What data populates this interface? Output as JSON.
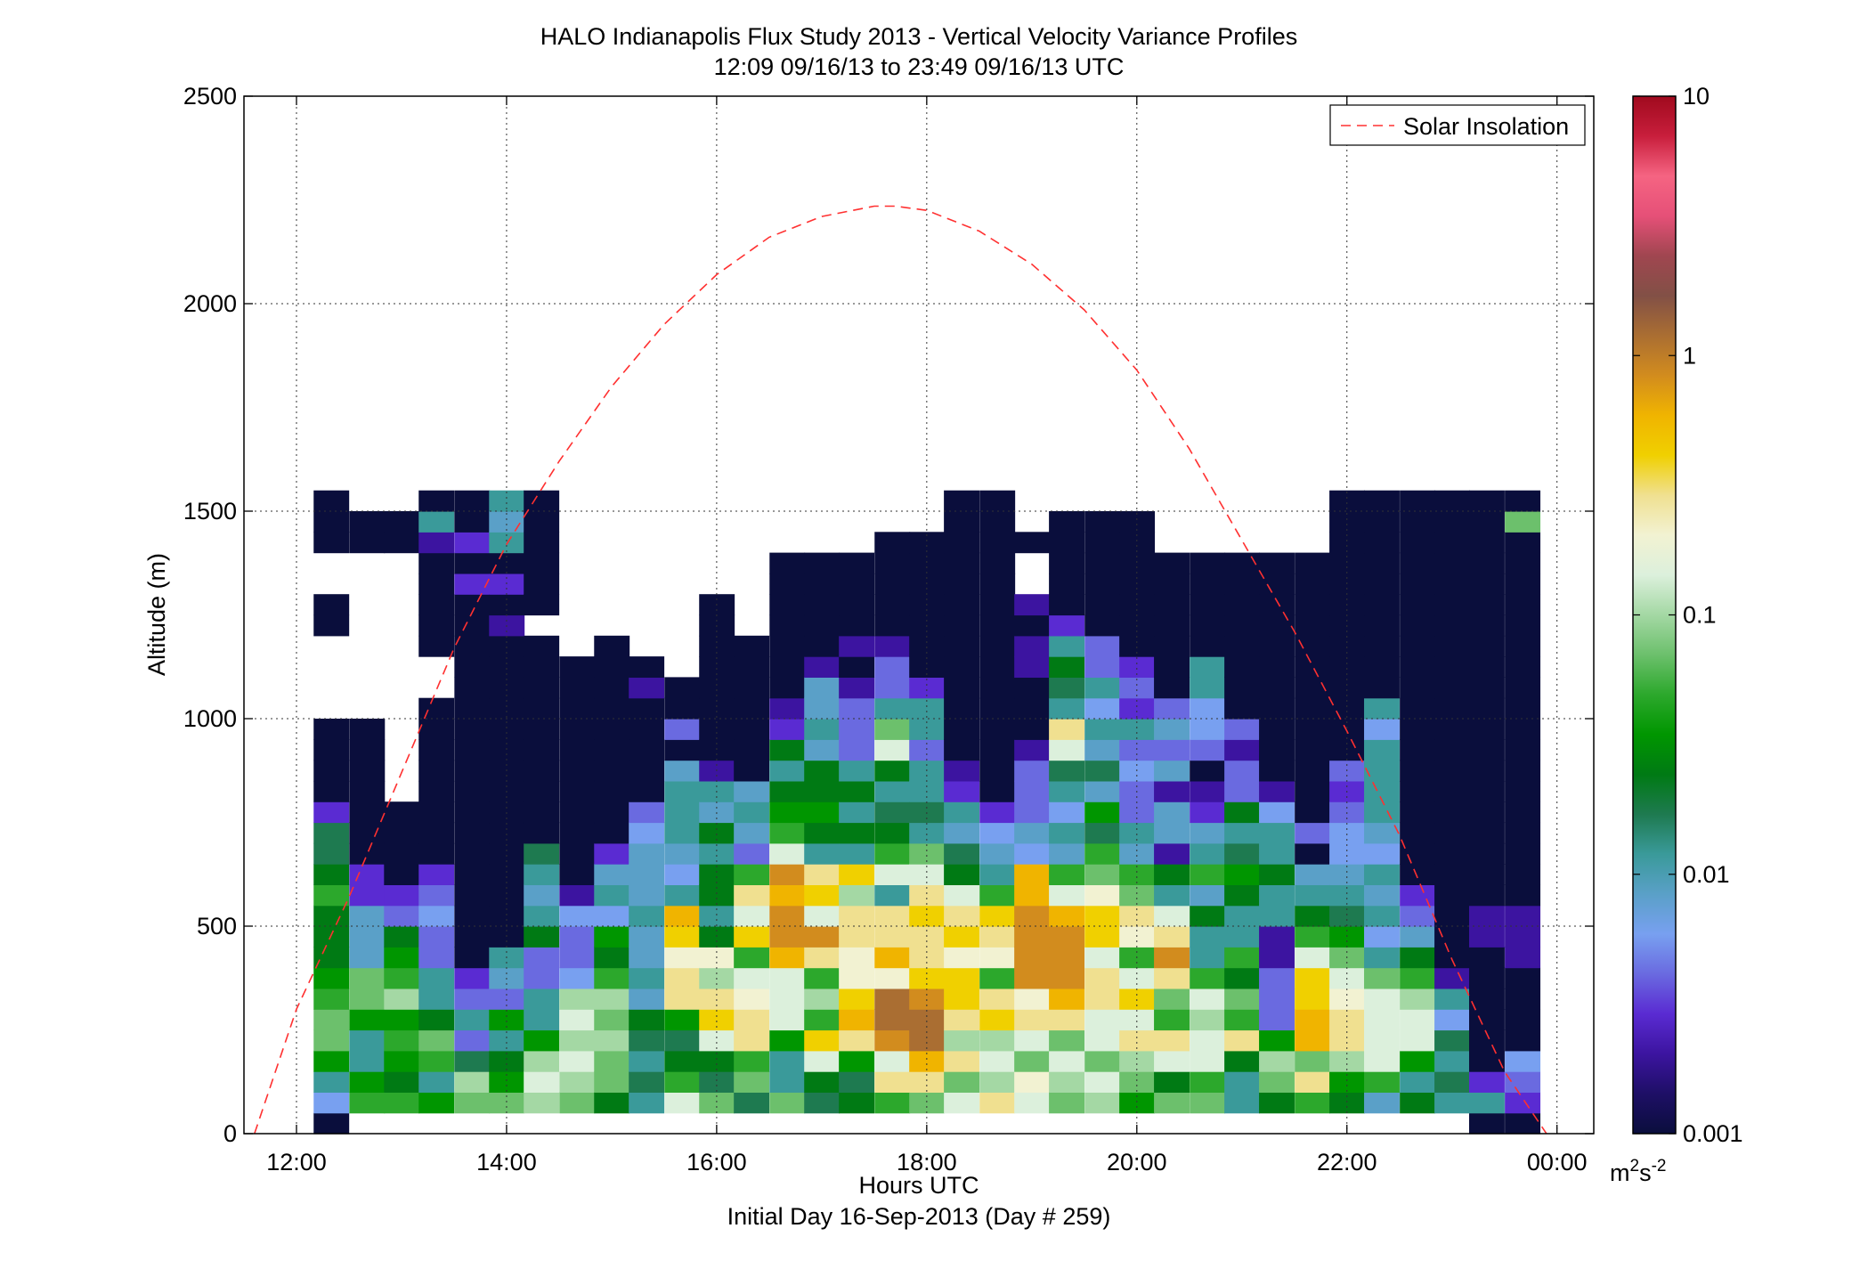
{
  "chart_data": {
    "type": "heatmap",
    "title": "HALO Indianapolis Flux Study 2013 - Vertical Velocity Variance Profiles",
    "subtitle": "12:09 09/16/13 to 23:49 09/16/13  UTC",
    "xlabel": "Hours UTC",
    "xlabel2": "Initial Day 16-Sep-2013 (Day # 259)",
    "ylabel": "Altitude (m)",
    "xlim": [
      11.5,
      24.35
    ],
    "ylim": [
      0,
      2500
    ],
    "x_ticks": [
      12,
      14,
      16,
      18,
      20,
      22,
      24
    ],
    "x_tick_labels": [
      "12:00",
      "14:00",
      "16:00",
      "18:00",
      "20:00",
      "22:00",
      "00:00"
    ],
    "y_ticks": [
      0,
      500,
      1000,
      1500,
      2000,
      2500
    ],
    "y_tick_labels": [
      "0",
      "500",
      "1000",
      "1500",
      "2000",
      "2500"
    ],
    "grid": true,
    "colorbar": {
      "scale": "log",
      "range": [
        0.001,
        10
      ],
      "ticks": [
        0.001,
        0.01,
        0.1,
        1,
        10
      ],
      "tick_labels": [
        "0.001",
        "0.01",
        "0.1",
        "1",
        "10"
      ],
      "unit_base": "m",
      "unit_exp1": "2",
      "unit_mid": "s",
      "unit_exp2": "-2",
      "colormap": [
        "#0a0e3c",
        "#1e0f66",
        "#3c14a0",
        "#5a2bd2",
        "#6a6ae0",
        "#78a0f0",
        "#5aa0c8",
        "#3a9a9a",
        "#1e7a50",
        "#007a14",
        "#009600",
        "#2ca82c",
        "#6cc06c",
        "#a4d8a4",
        "#dcf0dc",
        "#f2f2d2",
        "#f0e090",
        "#f0d000",
        "#f0b400",
        "#d28c1e",
        "#aa6e32",
        "#825046",
        "#a04650",
        "#e65078",
        "#f56482",
        "#c81e3c",
        "#a00a1e"
      ]
    },
    "legend": {
      "placement": "top-right",
      "entries": [
        {
          "name": "Solar Insolation",
          "style": "dashed",
          "color": "#ff3030"
        }
      ]
    },
    "solar_insolation": {
      "x": [
        11.6,
        12.0,
        12.5,
        13.0,
        13.5,
        14.0,
        14.5,
        15.0,
        15.5,
        16.0,
        16.5,
        17.0,
        17.5,
        17.7,
        18.0,
        18.5,
        19.0,
        19.5,
        20.0,
        20.5,
        21.0,
        21.5,
        22.0,
        22.5,
        23.0,
        23.5,
        23.9
      ],
      "y": [
        0,
        300,
        570,
        870,
        1170,
        1420,
        1620,
        1800,
        1950,
        2070,
        2160,
        2210,
        2235,
        2235,
        2225,
        2175,
        2095,
        1985,
        1840,
        1650,
        1430,
        1210,
        970,
        720,
        420,
        150,
        0
      ]
    },
    "time_bin_width_h": 0.3333,
    "altitude_bin_m": 50,
    "altitude_bins_bottom_m": [
      0,
      50,
      100,
      150,
      200,
      250,
      300,
      350,
      400,
      450,
      500,
      550,
      600,
      650,
      700,
      750,
      800,
      850,
      900,
      950,
      1000,
      1050,
      1100,
      1150,
      1200,
      1250,
      1300,
      1350,
      1400,
      1450,
      1500
    ],
    "times_h": [
      12.33,
      12.67,
      13.0,
      13.33,
      13.67,
      14.0,
      14.33,
      14.67,
      15.0,
      15.33,
      15.67,
      16.0,
      16.33,
      16.67,
      17.0,
      17.33,
      17.67,
      18.0,
      18.33,
      18.67,
      19.0,
      19.33,
      19.67,
      20.0,
      20.33,
      20.67,
      21.0,
      21.33,
      21.67,
      22.0,
      22.33,
      22.67,
      23.0,
      23.33,
      23.67
    ],
    "variance_m2s2": [
      [
        0.001,
        0.007,
        0.015,
        0.04,
        0.08,
        0.06,
        0.05,
        0.04,
        0.025,
        0.03,
        0.03,
        0.05,
        0.025,
        0.02,
        0.02,
        0.003,
        0.001,
        0.001,
        0.001,
        0.001,
        null,
        null,
        null,
        null,
        0.001,
        0.001,
        null,
        null,
        0.001,
        0.001,
        0.001
      ],
      [
        null,
        0.05,
        0.04,
        0.015,
        0.012,
        0.04,
        0.06,
        0.06,
        0.008,
        0.008,
        0.008,
        0.003,
        0.003,
        0.001,
        0.001,
        0.001,
        0.001,
        0.001,
        0.001,
        0.001,
        null,
        null,
        null,
        null,
        null,
        null,
        null,
        null,
        0.001,
        0.001,
        null
      ],
      [
        null,
        0.05,
        0.03,
        0.035,
        0.05,
        0.04,
        0.1,
        0.05,
        0.04,
        0.03,
        0.004,
        0.003,
        0.001,
        0.001,
        0.001,
        0.001,
        null,
        null,
        null,
        null,
        null,
        null,
        null,
        null,
        null,
        null,
        null,
        null,
        0.001,
        0.001,
        null
      ],
      [
        null,
        0.04,
        0.015,
        0.05,
        0.08,
        0.03,
        0.012,
        0.015,
        0.005,
        0.005,
        0.007,
        0.004,
        0.003,
        0.001,
        0.001,
        0.001,
        0.001,
        0.001,
        0.001,
        0.001,
        0.001,
        null,
        null,
        0.001,
        0.001,
        0.001,
        0.001,
        0.001,
        0.002,
        0.015,
        0.001
      ],
      [
        null,
        0.07,
        0.1,
        0.02,
        0.005,
        0.012,
        0.005,
        0.003,
        0.001,
        0.001,
        0.001,
        0.001,
        0.001,
        0.001,
        0.001,
        0.001,
        0.001,
        0.001,
        0.001,
        0.001,
        0.001,
        0.001,
        0.001,
        0.001,
        0.001,
        0.001,
        0.003,
        0.001,
        0.003,
        0.001,
        0.001
      ],
      [
        null,
        0.06,
        0.04,
        0.03,
        0.015,
        0.04,
        0.005,
        0.008,
        0.012,
        0.001,
        0.001,
        0.001,
        0.001,
        0.001,
        0.001,
        0.001,
        0.001,
        0.001,
        0.001,
        0.001,
        0.001,
        0.001,
        0.001,
        0.001,
        0.002,
        0.001,
        0.003,
        0.001,
        0.012,
        0.01,
        0.015
      ],
      [
        null,
        0.1,
        0.12,
        0.1,
        0.04,
        0.015,
        0.012,
        0.004,
        0.005,
        0.03,
        0.015,
        0.01,
        0.012,
        0.02,
        0.001,
        0.001,
        0.001,
        0.001,
        0.001,
        0.001,
        0.001,
        0.001,
        0.001,
        0.001,
        null,
        0.001,
        0.001,
        0.001,
        0.001,
        0.001,
        0.001
      ],
      [
        null,
        0.08,
        0.1,
        0.12,
        0.1,
        0.15,
        0.1,
        0.007,
        0.005,
        0.004,
        0.006,
        0.002,
        0.001,
        0.001,
        0.001,
        0.001,
        0.001,
        0.001,
        0.001,
        0.001,
        0.001,
        0.001,
        0.001,
        null,
        null,
        null,
        null,
        null,
        null,
        null,
        null
      ],
      [
        null,
        0.03,
        0.06,
        0.08,
        0.1,
        0.08,
        0.1,
        0.05,
        0.03,
        0.04,
        0.007,
        0.015,
        0.008,
        0.003,
        0.001,
        0.001,
        0.001,
        0.001,
        0.001,
        0.001,
        0.001,
        0.001,
        0.001,
        0.001,
        null,
        null,
        null,
        null,
        null,
        null,
        null
      ],
      [
        null,
        0.015,
        0.02,
        0.015,
        0.02,
        0.025,
        0.01,
        0.015,
        0.01,
        0.01,
        0.012,
        0.01,
        0.01,
        0.01,
        0.006,
        0.005,
        0.001,
        0.001,
        0.001,
        0.001,
        0.001,
        0.002,
        0.001,
        null,
        null,
        null,
        null,
        null,
        null,
        null,
        null
      ],
      [
        null,
        0.12,
        0.05,
        0.03,
        0.02,
        0.04,
        0.25,
        0.3,
        0.2,
        0.4,
        0.6,
        0.012,
        0.007,
        0.01,
        0.015,
        0.012,
        0.015,
        0.01,
        0.001,
        0.005,
        0.001,
        0.001,
        null,
        null,
        null,
        null,
        null,
        null,
        null,
        null,
        null
      ],
      [
        null,
        0.06,
        0.02,
        0.03,
        0.15,
        0.35,
        0.3,
        0.1,
        0.2,
        0.03,
        0.015,
        0.03,
        0.03,
        0.015,
        0.03,
        0.01,
        0.012,
        0.002,
        0.001,
        0.001,
        0.001,
        0.001,
        0.001,
        0.001,
        0.001,
        0.001,
        null,
        null,
        null,
        null,
        null
      ],
      [
        null,
        0.02,
        0.06,
        0.05,
        0.3,
        0.3,
        0.2,
        0.12,
        0.05,
        0.4,
        0.12,
        0.3,
        0.05,
        0.005,
        0.01,
        0.015,
        0.008,
        0.001,
        0.001,
        0.001,
        0.001,
        0.001,
        0.001,
        0.001,
        null,
        null,
        null,
        null,
        null,
        null,
        null
      ],
      [
        null,
        0.06,
        0.015,
        0.012,
        0.04,
        0.12,
        0.15,
        0.15,
        0.5,
        0.7,
        0.8,
        0.6,
        0.7,
        0.15,
        0.05,
        0.04,
        0.025,
        0.015,
        0.03,
        0.003,
        0.002,
        0.001,
        0.001,
        0.001,
        0.001,
        0.001,
        0.001,
        0.001,
        null,
        null,
        null
      ],
      [
        null,
        0.02,
        0.03,
        0.15,
        0.4,
        0.05,
        0.1,
        0.05,
        0.3,
        0.8,
        0.12,
        0.4,
        0.3,
        0.015,
        0.03,
        0.04,
        0.025,
        0.03,
        0.01,
        0.012,
        0.01,
        0.01,
        0.002,
        0.001,
        0.001,
        0.001,
        0.001,
        0.001,
        null,
        null,
        null
      ],
      [
        null,
        0.03,
        0.02,
        0.04,
        0.3,
        0.5,
        0.4,
        0.2,
        0.2,
        0.3,
        0.3,
        0.1,
        0.4,
        0.015,
        0.03,
        0.012,
        0.03,
        0.015,
        0.004,
        0.005,
        0.004,
        0.002,
        0.001,
        0.002,
        0.001,
        0.001,
        0.001,
        0.001,
        null,
        null,
        null
      ],
      [
        null,
        0.05,
        0.3,
        0.12,
        0.8,
        1.2,
        1.0,
        0.2,
        0.6,
        0.3,
        0.25,
        0.015,
        0.12,
        0.05,
        0.03,
        0.02,
        0.012,
        0.03,
        0.12,
        0.08,
        0.015,
        0.005,
        0.005,
        0.002,
        0.001,
        0.001,
        0.001,
        0.001,
        0.001,
        null,
        null
      ],
      [
        null,
        0.06,
        0.3,
        0.5,
        1.0,
        1.2,
        0.8,
        0.4,
        0.3,
        0.3,
        0.4,
        0.3,
        0.12,
        0.06,
        0.015,
        0.02,
        0.012,
        0.015,
        0.005,
        0.012,
        0.015,
        0.003,
        0.001,
        0.001,
        0.001,
        0.001,
        0.001,
        0.001,
        0.001,
        null,
        null
      ],
      [
        null,
        0.12,
        0.08,
        0.3,
        0.1,
        0.25,
        0.4,
        0.4,
        0.2,
        0.35,
        0.3,
        0.15,
        0.03,
        0.02,
        0.008,
        0.015,
        0.003,
        0.002,
        0.001,
        0.001,
        0.001,
        0.001,
        0.001,
        0.001,
        0.001,
        0.001,
        0.001,
        0.001,
        0.001,
        0.001,
        0.001
      ],
      [
        null,
        0.25,
        0.1,
        0.12,
        0.1,
        0.4,
        0.3,
        0.05,
        0.2,
        0.25,
        0.4,
        0.05,
        0.015,
        0.008,
        0.007,
        0.003,
        0.001,
        0.001,
        0.001,
        0.001,
        0.001,
        0.001,
        0.001,
        0.001,
        0.001,
        0.001,
        0.001,
        0.001,
        0.001,
        0.001,
        0.001
      ],
      [
        null,
        0.15,
        0.2,
        0.08,
        0.12,
        0.3,
        0.2,
        0.8,
        0.8,
        0.8,
        0.8,
        0.6,
        0.5,
        0.007,
        0.01,
        0.005,
        0.004,
        0.005,
        0.002,
        0.001,
        0.001,
        0.001,
        0.002,
        0.002,
        0.001,
        0.002,
        null,
        null,
        0.001,
        null,
        null
      ],
      [
        null,
        0.08,
        0.1,
        0.15,
        0.08,
        0.3,
        0.5,
        0.7,
        0.8,
        0.8,
        0.6,
        0.15,
        0.05,
        0.01,
        0.012,
        0.007,
        0.015,
        0.02,
        0.15,
        0.3,
        0.015,
        0.02,
        0.025,
        0.012,
        0.003,
        0.001,
        0.001,
        0.001,
        0.001,
        0.001,
        null
      ],
      [
        null,
        0.1,
        0.15,
        0.08,
        0.15,
        0.12,
        0.3,
        0.3,
        0.12,
        0.35,
        0.35,
        0.2,
        0.06,
        0.05,
        0.02,
        0.04,
        0.008,
        0.02,
        0.008,
        0.015,
        0.006,
        0.012,
        0.005,
        0.004,
        0.001,
        0.001,
        0.001,
        0.001,
        0.001,
        0.001,
        null
      ],
      [
        null,
        0.04,
        0.06,
        0.1,
        0.3,
        0.12,
        0.35,
        0.15,
        0.05,
        0.2,
        0.3,
        0.08,
        0.05,
        0.01,
        0.015,
        0.005,
        0.004,
        0.007,
        0.004,
        0.012,
        0.003,
        0.005,
        0.003,
        0.001,
        0.001,
        0.001,
        0.001,
        0.001,
        0.001,
        0.001,
        null
      ],
      [
        null,
        0.08,
        0.03,
        0.15,
        0.3,
        0.05,
        0.08,
        0.3,
        0.8,
        0.3,
        0.12,
        0.015,
        0.03,
        0.002,
        0.01,
        0.01,
        0.002,
        0.008,
        0.005,
        0.01,
        0.004,
        0.001,
        0.001,
        0.001,
        0.001,
        0.001,
        0.001,
        0.001,
        null,
        null,
        null
      ],
      [
        null,
        0.06,
        0.05,
        0.12,
        0.15,
        0.1,
        0.12,
        0.05,
        0.015,
        0.015,
        0.03,
        0.01,
        0.05,
        0.015,
        0.008,
        0.003,
        0.002,
        0.001,
        0.004,
        0.006,
        0.006,
        0.012,
        0.012,
        0.001,
        0.001,
        0.001,
        0.001,
        0.001,
        null,
        null,
        null
      ],
      [
        null,
        0.012,
        0.015,
        0.03,
        0.3,
        0.05,
        0.08,
        0.03,
        0.05,
        0.012,
        0.015,
        0.025,
        0.04,
        0.02,
        0.015,
        0.03,
        0.004,
        0.004,
        0.002,
        0.004,
        0.001,
        0.001,
        0.001,
        0.001,
        0.001,
        0.001,
        0.001,
        0.001,
        null,
        null,
        null
      ],
      [
        null,
        0.03,
        0.08,
        0.1,
        0.04,
        0.004,
        0.005,
        0.005,
        0.002,
        0.002,
        0.012,
        0.015,
        0.03,
        0.015,
        0.012,
        0.006,
        0.002,
        0.001,
        0.001,
        0.001,
        0.001,
        0.001,
        0.001,
        0.001,
        0.001,
        0.001,
        0.001,
        0.001,
        null,
        null,
        null
      ],
      [
        null,
        0.05,
        0.3,
        0.08,
        0.5,
        0.6,
        0.4,
        0.4,
        0.12,
        0.05,
        0.03,
        0.015,
        0.008,
        0.001,
        0.005,
        0.001,
        0.001,
        0.001,
        0.001,
        0.001,
        0.001,
        0.001,
        0.001,
        0.001,
        0.001,
        0.001,
        0.001,
        0.001,
        null,
        null,
        null
      ],
      [
        null,
        0.03,
        0.04,
        0.1,
        0.3,
        0.3,
        0.2,
        0.12,
        0.06,
        0.04,
        0.02,
        0.015,
        0.01,
        0.006,
        0.007,
        0.005,
        0.003,
        0.005,
        0.001,
        0.001,
        0.001,
        0.001,
        0.001,
        0.001,
        0.001,
        0.001,
        0.001,
        0.001,
        0.001,
        0.001,
        0.001
      ],
      [
        null,
        0.01,
        0.05,
        0.12,
        0.15,
        0.15,
        0.12,
        0.08,
        0.012,
        0.006,
        0.015,
        0.008,
        0.012,
        0.006,
        0.008,
        0.015,
        0.012,
        0.015,
        0.015,
        0.007,
        0.015,
        0.001,
        0.001,
        0.001,
        0.001,
        0.001,
        0.001,
        0.001,
        0.001,
        0.001,
        0.001
      ],
      [
        null,
        0.03,
        0.015,
        0.04,
        0.12,
        0.15,
        0.1,
        0.05,
        0.03,
        0.01,
        0.005,
        0.003,
        0.001,
        0.001,
        0.001,
        0.001,
        0.001,
        0.001,
        0.001,
        0.001,
        0.001,
        0.001,
        0.001,
        0.001,
        0.001,
        0.001,
        0.001,
        0.001,
        0.001,
        0.001,
        0.001
      ],
      [
        null,
        0.012,
        0.02,
        0.015,
        0.02,
        0.006,
        0.015,
        0.002,
        0.001,
        0.001,
        0.001,
        0.001,
        0.001,
        0.001,
        0.001,
        0.001,
        0.001,
        0.001,
        0.001,
        0.001,
        0.001,
        0.001,
        0.001,
        0.001,
        0.001,
        0.001,
        0.001,
        0.001,
        0.001,
        0.001,
        0.001
      ],
      [
        0.001,
        0.015,
        0.003,
        0.001,
        0.001,
        0.001,
        0.001,
        0.001,
        0.001,
        0.002,
        0.002,
        0.001,
        0.001,
        0.001,
        0.001,
        0.001,
        0.001,
        0.001,
        0.001,
        0.001,
        0.001,
        0.001,
        0.001,
        0.001,
        0.001,
        0.001,
        0.001,
        0.001,
        0.001,
        0.001,
        0.001
      ],
      [
        0.001,
        0.003,
        0.004,
        0.006,
        0.001,
        0.001,
        0.001,
        0.001,
        0.002,
        0.002,
        0.002,
        0.001,
        0.001,
        0.001,
        0.001,
        0.001,
        0.001,
        0.001,
        0.001,
        0.001,
        0.001,
        0.001,
        0.001,
        0.001,
        0.001,
        0.001,
        0.001,
        0.001,
        0.001,
        0.08,
        0.001
      ]
    ]
  }
}
